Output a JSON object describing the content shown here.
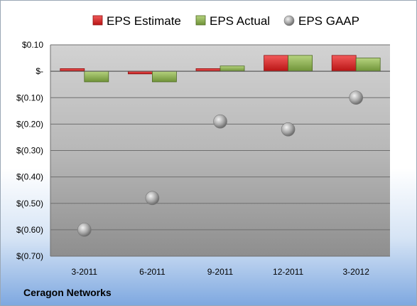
{
  "company": "Ceragon Networks",
  "chart_data": {
    "type": "bar",
    "categories": [
      "3-2011",
      "6-2011",
      "9-2011",
      "12-2011",
      "3-2012"
    ],
    "series": [
      {
        "name": "EPS Estimate",
        "kind": "bar",
        "color": "#d42a2a",
        "values": [
          0.01,
          -0.01,
          0.01,
          0.06,
          0.06
        ]
      },
      {
        "name": "EPS Actual",
        "kind": "bar",
        "color": "#8db255",
        "values": [
          -0.04,
          -0.04,
          0.02,
          0.06,
          0.05
        ]
      },
      {
        "name": "EPS GAAP",
        "kind": "scatter",
        "color": "#a0a0a0",
        "values": [
          -0.6,
          -0.48,
          -0.19,
          -0.22,
          -0.1
        ]
      }
    ],
    "yticks": [
      {
        "value": 0.1,
        "label": "$0.10"
      },
      {
        "value": 0.0,
        "label": "$-"
      },
      {
        "value": -0.1,
        "label": "$(0.10)"
      },
      {
        "value": -0.2,
        "label": "$(0.20)"
      },
      {
        "value": -0.3,
        "label": "$(0.30)"
      },
      {
        "value": -0.4,
        "label": "$(0.40)"
      },
      {
        "value": -0.5,
        "label": "$(0.50)"
      },
      {
        "value": -0.6,
        "label": "$(0.60)"
      },
      {
        "value": -0.7,
        "label": "$(0.70)"
      }
    ],
    "ylim": [
      -0.7,
      0.1
    ],
    "grid": true,
    "legend": "top"
  }
}
